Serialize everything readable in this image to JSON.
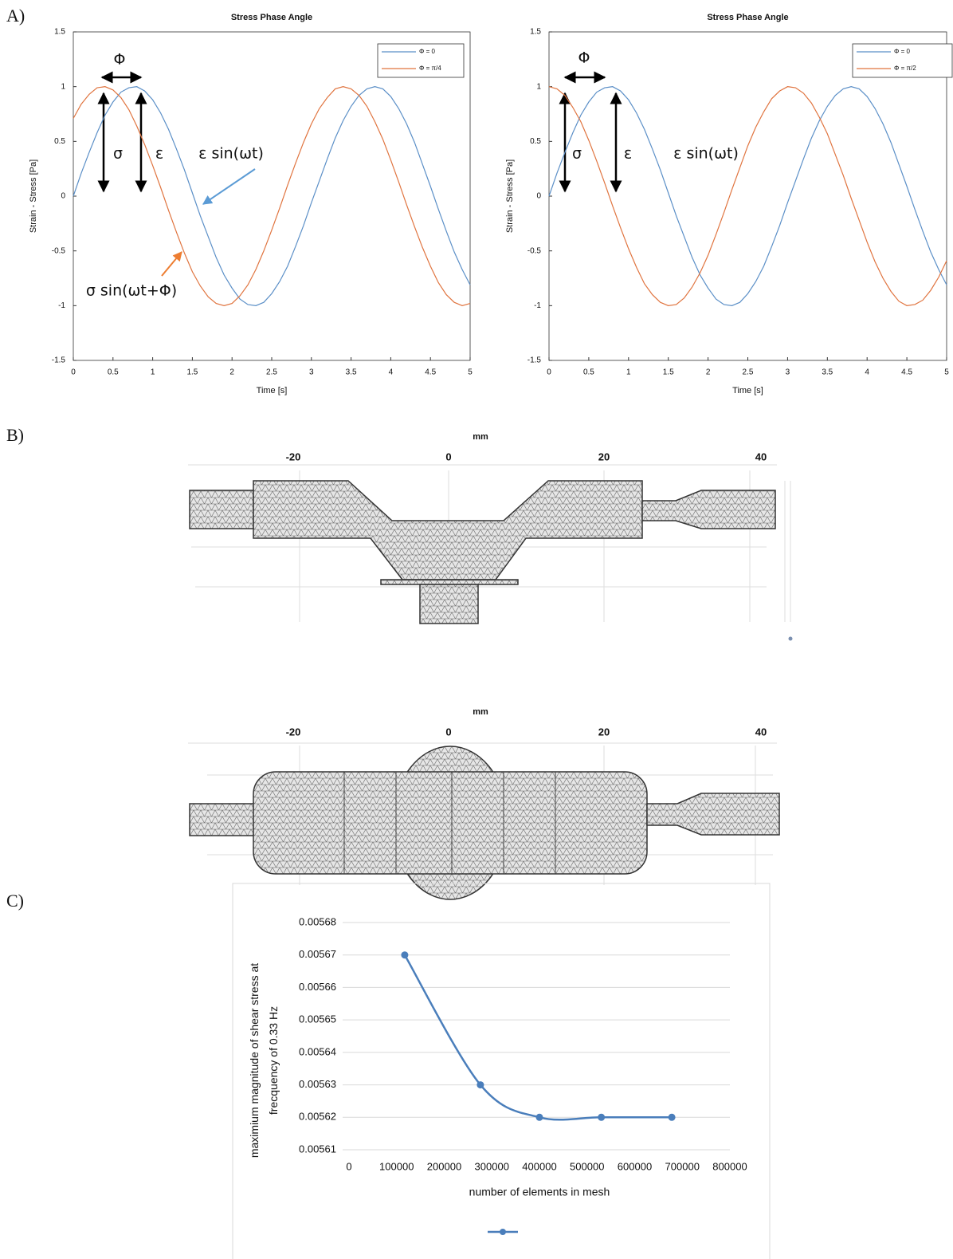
{
  "panel_labels": [
    "A)",
    "B)",
    "C)"
  ],
  "mesh_views": [
    {
      "unit": "mm",
      "ticks": [
        "-20",
        "0",
        "20",
        "40"
      ]
    },
    {
      "unit": "mm",
      "ticks": [
        "-20",
        "0",
        "20",
        "40"
      ]
    }
  ],
  "chart_data": [
    {
      "type": "line",
      "title": "Stress Phase Angle",
      "x_label": "Time [s]",
      "y_label": "Strain - Stress [Pa]",
      "x": [
        0,
        0.1,
        0.2,
        0.3,
        0.4,
        0.5,
        0.6,
        0.7,
        0.8,
        0.9,
        1,
        1.1,
        1.2,
        1.3,
        1.4,
        1.5,
        1.6,
        1.7,
        1.8,
        1.9,
        2,
        2.1,
        2.2,
        2.3,
        2.4,
        2.5,
        2.6,
        2.7,
        2.8,
        2.9,
        3,
        3.1,
        3.2,
        3.3,
        3.4,
        3.5,
        3.6,
        3.7,
        3.8,
        3.9,
        4,
        4.1,
        4.2,
        4.3,
        4.4,
        4.5,
        4.6,
        4.7,
        4.8,
        4.9,
        5
      ],
      "series": [
        {
          "name": "Φ = 0",
          "color": "#5b8fc7",
          "values": [
            0,
            0.21,
            0.4,
            0.58,
            0.74,
            0.86,
            0.95,
            0.99,
            1,
            0.96,
            0.88,
            0.76,
            0.61,
            0.43,
            0.24,
            0.03,
            -0.18,
            -0.37,
            -0.56,
            -0.72,
            -0.84,
            -0.94,
            -0.99,
            -1,
            -0.97,
            -0.89,
            -0.78,
            -0.64,
            -0.46,
            -0.27,
            -0.06,
            0.14,
            0.34,
            0.53,
            0.69,
            0.82,
            0.92,
            0.98,
            1,
            0.98,
            0.91,
            0.8,
            0.66,
            0.49,
            0.29,
            0.09,
            -0.12,
            -0.32,
            -0.51,
            -0.67,
            -0.81
          ]
        },
        {
          "name": "Φ = π/4",
          "color": "#e0743f",
          "values": [
            0.71,
            0.84,
            0.93,
            0.99,
            1,
            0.97,
            0.9,
            0.79,
            0.64,
            0.47,
            0.28,
            0.08,
            -0.13,
            -0.33,
            -0.52,
            -0.69,
            -0.82,
            -0.92,
            -0.98,
            -1,
            -0.98,
            -0.91,
            -0.81,
            -0.67,
            -0.5,
            -0.31,
            -0.11,
            0.1,
            0.3,
            0.49,
            0.66,
            0.8,
            0.9,
            0.98,
            1,
            0.98,
            0.92,
            0.82,
            0.68,
            0.52,
            0.33,
            0.13,
            -0.08,
            -0.28,
            -0.47,
            -0.64,
            -0.79,
            -0.9,
            -0.97,
            -1,
            -0.98
          ]
        }
      ],
      "xlim": [
        0,
        5
      ],
      "ylim": [
        -1.5,
        1.5
      ],
      "xticks": [
        0,
        0.5,
        1,
        1.5,
        2,
        2.5,
        3,
        3.5,
        4,
        4.5,
        5
      ],
      "yticks": [
        -1.5,
        -1,
        -0.5,
        0,
        0.5,
        1,
        1.5
      ],
      "legend": "upper right",
      "grid": false,
      "annotations": [
        "Φ",
        "σ",
        "ε",
        "ε sin(ωt)",
        "σ sin(ωt+Φ)"
      ]
    },
    {
      "type": "line",
      "title": "Stress Phase Angle",
      "x_label": "Time [s]",
      "y_label": "Strain - Stress [Pa]",
      "x": [
        0,
        0.1,
        0.2,
        0.3,
        0.4,
        0.5,
        0.6,
        0.7,
        0.8,
        0.9,
        1,
        1.1,
        1.2,
        1.3,
        1.4,
        1.5,
        1.6,
        1.7,
        1.8,
        1.9,
        2,
        2.1,
        2.2,
        2.3,
        2.4,
        2.5,
        2.6,
        2.7,
        2.8,
        2.9,
        3,
        3.1,
        3.2,
        3.3,
        3.4,
        3.5,
        3.6,
        3.7,
        3.8,
        3.9,
        4,
        4.1,
        4.2,
        4.3,
        4.4,
        4.5,
        4.6,
        4.7,
        4.8,
        4.9,
        5
      ],
      "series": [
        {
          "name": "Φ = 0",
          "color": "#5b8fc7",
          "values": [
            0,
            0.21,
            0.4,
            0.58,
            0.74,
            0.86,
            0.95,
            0.99,
            1,
            0.96,
            0.88,
            0.76,
            0.61,
            0.43,
            0.24,
            0.03,
            -0.18,
            -0.37,
            -0.56,
            -0.72,
            -0.84,
            -0.94,
            -0.99,
            -1,
            -0.97,
            -0.89,
            -0.78,
            -0.64,
            -0.46,
            -0.27,
            -0.06,
            0.14,
            0.34,
            0.53,
            0.69,
            0.82,
            0.92,
            0.98,
            1,
            0.98,
            0.91,
            0.8,
            0.66,
            0.49,
            0.29,
            0.09,
            -0.12,
            -0.32,
            -0.51,
            -0.67,
            -0.81
          ]
        },
        {
          "name": "Φ = π/2",
          "color": "#e0743f",
          "values": [
            1,
            0.98,
            0.92,
            0.81,
            0.68,
            0.51,
            0.32,
            0.12,
            -0.09,
            -0.29,
            -0.48,
            -0.65,
            -0.8,
            -0.9,
            -0.97,
            -1,
            -0.99,
            -0.93,
            -0.83,
            -0.7,
            -0.54,
            -0.35,
            -0.15,
            0.06,
            0.26,
            0.46,
            0.63,
            0.77,
            0.89,
            0.96,
            1,
            0.99,
            0.94,
            0.85,
            0.72,
            0.57,
            0.38,
            0.19,
            -0.02,
            -0.22,
            -0.42,
            -0.6,
            -0.75,
            -0.87,
            -0.96,
            -1,
            -0.99,
            -0.95,
            -0.86,
            -0.74,
            -0.59
          ]
        }
      ],
      "xlim": [
        0,
        5
      ],
      "ylim": [
        -1.5,
        1.5
      ],
      "xticks": [
        0,
        0.5,
        1,
        1.5,
        2,
        2.5,
        3,
        3.5,
        4,
        4.5,
        5
      ],
      "yticks": [
        -1.5,
        -1,
        -0.5,
        0,
        0.5,
        1,
        1.5
      ],
      "legend": "upper right",
      "grid": false,
      "annotations": [
        "Φ",
        "σ",
        "ε",
        "ε sin(ωt)"
      ]
    },
    {
      "type": "line",
      "x_label": "number of elements in mesh",
      "y_label": "maximium magnitude of shear stress at frecquency of 0.33 Hz",
      "x": [
        117000,
        276000,
        400000,
        530000,
        678000
      ],
      "series": [
        {
          "color": "#4a7ebb",
          "values": [
            0.00567,
            0.00563,
            0.00562,
            0.00562,
            0.00562
          ]
        }
      ],
      "xlim": [
        0,
        800000
      ],
      "ylim": [
        0.00561,
        0.00568
      ],
      "xticks": [
        0,
        100000,
        200000,
        300000,
        400000,
        500000,
        600000,
        700000,
        800000
      ],
      "yticks": [
        0.00561,
        0.00562,
        0.00563,
        0.00564,
        0.00565,
        0.00566,
        0.00567,
        0.00568
      ],
      "grid": true,
      "smooth": true,
      "markers": true,
      "legend": "bottom"
    }
  ]
}
